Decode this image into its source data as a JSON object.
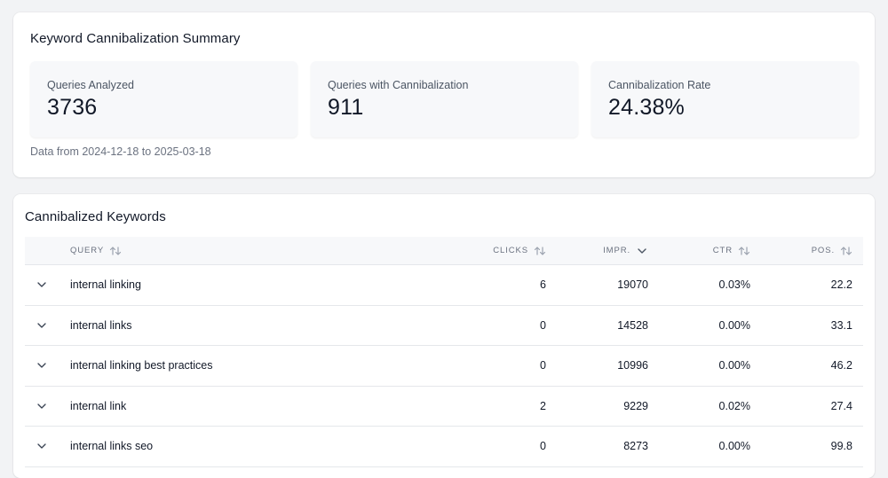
{
  "summary": {
    "title": "Keyword Cannibalization Summary",
    "stats": [
      {
        "label": "Queries Analyzed",
        "value": "3736"
      },
      {
        "label": "Queries with Cannibalization",
        "value": "911"
      },
      {
        "label": "Cannibalization Rate",
        "value": "24.38%"
      }
    ],
    "date_range": "Data from 2024-12-18 to 2025-03-18"
  },
  "table": {
    "title": "Cannibalized Keywords",
    "columns": {
      "query": "QUERY",
      "clicks": "CLICKS",
      "impr": "IMPR.",
      "ctr": "CTR",
      "pos": "POS."
    },
    "sort": {
      "column": "impr",
      "direction": "desc"
    },
    "rows": [
      {
        "query": "internal linking",
        "clicks": "6",
        "impr": "19070",
        "ctr": "0.03%",
        "pos": "22.2"
      },
      {
        "query": "internal links",
        "clicks": "0",
        "impr": "14528",
        "ctr": "0.00%",
        "pos": "33.1"
      },
      {
        "query": "internal linking best practices",
        "clicks": "0",
        "impr": "10996",
        "ctr": "0.00%",
        "pos": "46.2"
      },
      {
        "query": "internal link",
        "clicks": "2",
        "impr": "9229",
        "ctr": "0.02%",
        "pos": "27.4"
      },
      {
        "query": "internal links seo",
        "clicks": "0",
        "impr": "8273",
        "ctr": "0.00%",
        "pos": "99.8"
      }
    ]
  },
  "icons": {
    "sortable": "sort-arrows-icon",
    "sorted_desc": "chevron-down-icon",
    "row_expand": "chevron-down-icon"
  },
  "colors": {
    "page_bg": "#f2f3f5",
    "card_bg": "#ffffff",
    "stat_bg": "#f7f8fa",
    "text": "#111827",
    "muted": "#6b7280"
  }
}
